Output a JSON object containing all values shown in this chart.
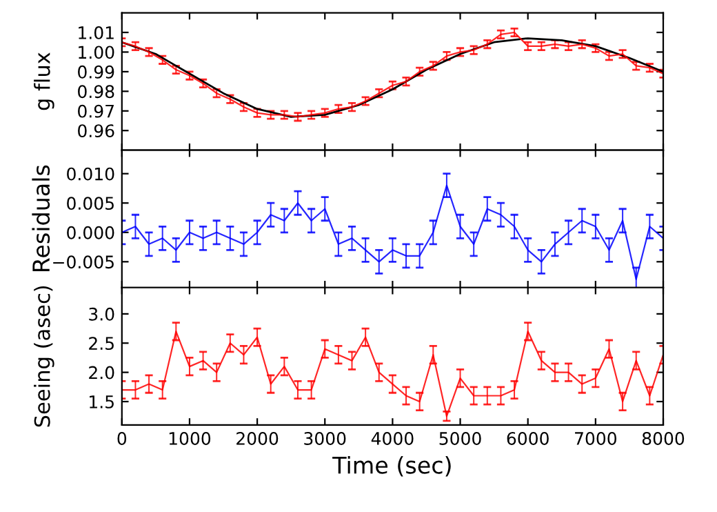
{
  "chart_data": [
    {
      "type": "line",
      "ylabel": "g flux",
      "xlim": [
        0,
        8000
      ],
      "ylim": [
        0.95,
        1.02
      ],
      "yticks": [
        {
          "value": 0.96,
          "label": "0.96"
        },
        {
          "value": 0.97,
          "label": "0.97"
        },
        {
          "value": 0.98,
          "label": "0.98"
        },
        {
          "value": 0.99,
          "label": "0.99"
        },
        {
          "value": 1.0,
          "label": "1.00"
        },
        {
          "value": 1.01,
          "label": "1.01"
        }
      ],
      "xticks": [
        0,
        1000,
        2000,
        3000,
        4000,
        5000,
        6000,
        7000,
        8000
      ],
      "tick_labels": "y",
      "grid": false,
      "marker": "none",
      "line_style": "solid",
      "x": [
        0,
        200,
        400,
        600,
        800,
        1000,
        1200,
        1400,
        1600,
        1800,
        2000,
        2200,
        2400,
        2600,
        2800,
        3000,
        3200,
        3400,
        3600,
        3800,
        4000,
        4200,
        4400,
        4600,
        4800,
        5000,
        5200,
        5400,
        5600,
        5800,
        6000,
        6200,
        6400,
        6600,
        6800,
        7000,
        7200,
        7400,
        7600,
        7800,
        8000
      ],
      "series": [
        {
          "color": "#ff0000",
          "values": [
            1.005,
            1.003,
            1.0,
            0.996,
            0.991,
            0.988,
            0.984,
            0.979,
            0.976,
            0.972,
            0.969,
            0.968,
            0.968,
            0.967,
            0.968,
            0.969,
            0.971,
            0.972,
            0.975,
            0.979,
            0.983,
            0.985,
            0.99,
            0.993,
            0.998,
            1.0,
            1.001,
            1.004,
            1.009,
            1.01,
            1.003,
            1.003,
            1.004,
            1.003,
            1.004,
            1.002,
            0.998,
            0.999,
            0.993,
            0.992,
            0.989
          ],
          "errors": [
            0.002,
            0.002,
            0.002,
            0.002,
            0.002,
            0.002,
            0.002,
            0.002,
            0.002,
            0.002,
            0.002,
            0.002,
            0.002,
            0.002,
            0.002,
            0.002,
            0.002,
            0.002,
            0.002,
            0.002,
            0.002,
            0.002,
            0.002,
            0.002,
            0.002,
            0.002,
            0.002,
            0.002,
            0.002,
            0.002,
            0.002,
            0.002,
            0.002,
            0.002,
            0.002,
            0.002,
            0.002,
            0.002,
            0.002,
            0.002,
            0.002
          ]
        },
        {
          "color": "#000000",
          "x": [
            0,
            500,
            1000,
            1500,
            2000,
            2500,
            3000,
            3500,
            4000,
            4500,
            5000,
            5500,
            6000,
            6500,
            7000,
            7500,
            8000
          ],
          "values": [
            1.005,
            0.999,
            0.989,
            0.979,
            0.971,
            0.967,
            0.968,
            0.973,
            0.981,
            0.991,
            0.999,
            1.005,
            1.007,
            1.006,
            1.003,
            0.997,
            0.99
          ]
        }
      ]
    },
    {
      "type": "line",
      "ylabel": "Residuals",
      "xlim": [
        0,
        8000
      ],
      "ylim": [
        -0.0094,
        0.014
      ],
      "yticks": [
        {
          "value": -0.005,
          "label": "−0.005"
        },
        {
          "value": 0.0,
          "label": "0.000"
        },
        {
          "value": 0.005,
          "label": "0.005"
        },
        {
          "value": 0.01,
          "label": "0.010"
        }
      ],
      "xticks": [
        0,
        1000,
        2000,
        3000,
        4000,
        5000,
        6000,
        7000,
        8000
      ],
      "tick_labels": "y",
      "grid": false,
      "marker": "none",
      "line_style": "solid",
      "x": [
        0,
        200,
        400,
        600,
        800,
        1000,
        1200,
        1400,
        1600,
        1800,
        2000,
        2200,
        2400,
        2600,
        2800,
        3000,
        3200,
        3400,
        3600,
        3800,
        4000,
        4200,
        4400,
        4600,
        4800,
        5000,
        5200,
        5400,
        5600,
        5800,
        6000,
        6200,
        6400,
        6600,
        6800,
        7000,
        7200,
        7400,
        7600,
        7800,
        8000
      ],
      "series": [
        {
          "color": "#0000ff",
          "values": [
            0.0,
            0.001,
            -0.002,
            -0.001,
            -0.003,
            0.0,
            -0.001,
            0.0,
            -0.001,
            -0.002,
            0.0,
            0.003,
            0.002,
            0.005,
            0.002,
            0.004,
            -0.002,
            -0.001,
            -0.003,
            -0.005,
            -0.003,
            -0.004,
            -0.004,
            0.0,
            0.008,
            0.001,
            -0.002,
            0.004,
            0.003,
            0.001,
            -0.003,
            -0.005,
            -0.002,
            0.0,
            0.002,
            0.001,
            -0.003,
            0.002,
            -0.008,
            0.001,
            -0.001
          ],
          "errors": [
            0.002,
            0.002,
            0.002,
            0.002,
            0.002,
            0.002,
            0.002,
            0.002,
            0.002,
            0.002,
            0.002,
            0.002,
            0.002,
            0.002,
            0.002,
            0.002,
            0.002,
            0.002,
            0.002,
            0.002,
            0.002,
            0.002,
            0.002,
            0.002,
            0.002,
            0.002,
            0.002,
            0.002,
            0.002,
            0.002,
            0.002,
            0.002,
            0.002,
            0.002,
            0.002,
            0.002,
            0.002,
            0.002,
            0.002,
            0.002,
            0.002
          ]
        }
      ]
    },
    {
      "type": "line",
      "ylabel": "Seeing (asec)",
      "xlabel": "Time (sec)",
      "xlim": [
        0,
        8000
      ],
      "ylim": [
        1.1,
        3.45
      ],
      "yticks": [
        1.5,
        {
          "value": 2.0,
          "label": "2.0"
        },
        2.5,
        {
          "value": 3.0,
          "label": "3.0"
        }
      ],
      "xticks": [
        0,
        1000,
        2000,
        3000,
        4000,
        5000,
        6000,
        7000,
        8000
      ],
      "grid": false,
      "marker": "none",
      "line_style": "solid",
      "x": [
        0,
        200,
        400,
        600,
        800,
        1000,
        1200,
        1400,
        1600,
        1800,
        2000,
        2200,
        2400,
        2600,
        2800,
        3000,
        3200,
        3400,
        3600,
        3800,
        4000,
        4200,
        4400,
        4600,
        4800,
        5000,
        5200,
        5400,
        5600,
        5800,
        6000,
        6200,
        6400,
        6600,
        6800,
        7000,
        7200,
        7400,
        7600,
        7800,
        8000
      ],
      "series": [
        {
          "color": "#ff0000",
          "values": [
            1.7,
            1.7,
            1.8,
            1.7,
            2.7,
            2.1,
            2.2,
            2.0,
            2.5,
            2.3,
            2.6,
            1.8,
            2.1,
            1.7,
            1.7,
            2.4,
            2.3,
            2.2,
            2.6,
            2.0,
            1.8,
            1.6,
            1.5,
            2.3,
            1.25,
            1.9,
            1.6,
            1.6,
            1.6,
            1.7,
            2.7,
            2.2,
            2.0,
            2.0,
            1.8,
            1.9,
            2.4,
            1.5,
            2.2,
            1.6,
            2.3
          ],
          "errors": [
            0.15,
            0.15,
            0.15,
            0.15,
            0.15,
            0.15,
            0.15,
            0.15,
            0.15,
            0.15,
            0.15,
            0.15,
            0.15,
            0.15,
            0.15,
            0.15,
            0.15,
            0.15,
            0.15,
            0.15,
            0.15,
            0.15,
            0.15,
            0.15,
            0.08,
            0.15,
            0.15,
            0.15,
            0.15,
            0.15,
            0.15,
            0.15,
            0.15,
            0.15,
            0.15,
            0.15,
            0.15,
            0.15,
            0.15,
            0.15,
            0.15
          ]
        }
      ]
    }
  ]
}
